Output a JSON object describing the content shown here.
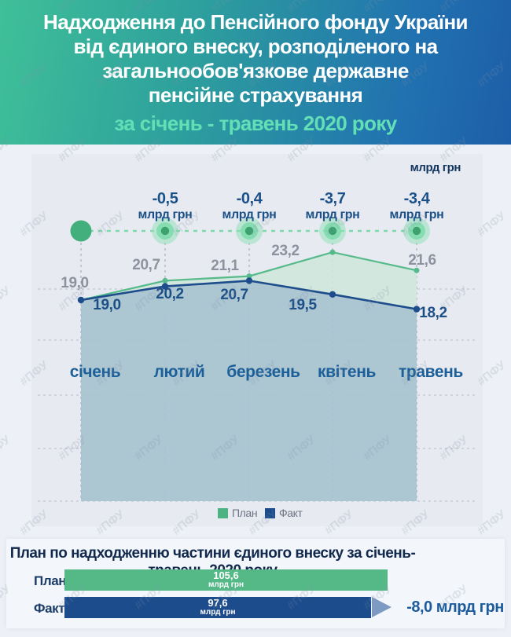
{
  "header": {
    "title_lines": [
      "Надходження до Пенсійного фонду України",
      "від єдиного внеску, розподіленого на",
      "загальнообов'язкове державне",
      "пенсійне страхування"
    ],
    "subtitle": "за січень - травень 2020 року"
  },
  "watermark": "#ПФУ",
  "chart": {
    "unit_label": "млрд грн",
    "months": [
      "січень",
      "лютий",
      "березень",
      "квітень",
      "травень"
    ],
    "diffs": [
      "-0,5",
      "-0,4",
      "-3,7",
      "-3,4"
    ],
    "diff_unit": "млрд грн",
    "plan_labels": [
      "19,0",
      "20,7",
      "21,1",
      "23,2",
      "21,6"
    ],
    "fact_labels": [
      "19,0",
      "20,2",
      "20,7",
      "19,5",
      "18,2"
    ],
    "legend": {
      "plan": "План",
      "fact": "Факт"
    }
  },
  "chart_data": {
    "type": "line",
    "title": "Надходження до Пенсійного фонду України від єдиного внеску, розподіленого на загальнообов'язкове державне пенсійне страхування за січень - травень 2020 року",
    "unit": "млрд грн",
    "categories": [
      "січень",
      "лютий",
      "березень",
      "квітень",
      "травень"
    ],
    "series": [
      {
        "name": "План",
        "values": [
          19.0,
          20.7,
          21.1,
          23.2,
          21.6
        ]
      },
      {
        "name": "Факт",
        "values": [
          19.0,
          20.2,
          20.7,
          19.5,
          18.2
        ]
      }
    ],
    "monthly_differences": [
      0.0,
      -0.5,
      -0.4,
      -3.7,
      -3.4
    ],
    "legend_position": "bottom",
    "grid": true,
    "totals": {
      "plan": 105.6,
      "fact": 97.6,
      "difference": -8.0
    }
  },
  "summary": {
    "title": "План по надходженню частини єдиного внеску за січень-травень 2020 року",
    "plan_label": "План",
    "plan_value": "105,6",
    "plan_unit": "млрд грн",
    "fact_label": "Факт",
    "fact_value": "97,6",
    "fact_unit": "млрд грн",
    "total_diff": "-8,0 млрд грн"
  },
  "colors": {
    "header_gradient_start": "#3fc098",
    "header_gradient_end": "#1d5ea8",
    "subtitle_green": "#63dfb6",
    "plan_green": "#55b987",
    "fact_navy": "#1c4c8c",
    "mint_fill": "#cfe8db",
    "steel_fill": "#a7c3d0",
    "navy_text": "#1b5188",
    "gray_label": "#8d939e",
    "arrow_blue": "#7d9bc2"
  }
}
